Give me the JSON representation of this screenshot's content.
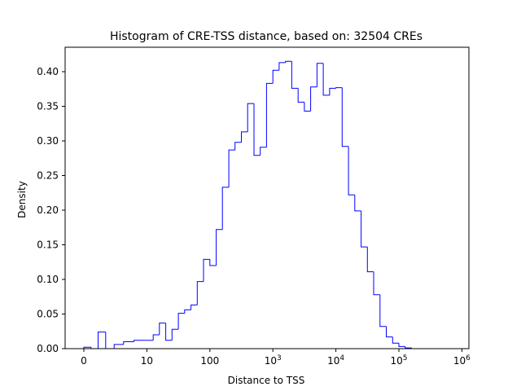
{
  "chart_data": {
    "type": "histogram",
    "title": "Histogram of CRE-TSS distance, based on: 32504 CREs",
    "xlabel": "Distance to TSS",
    "ylabel": "Density",
    "xscale": "symlog",
    "ylim": [
      0,
      0.435
    ],
    "grid": false,
    "legend": "none",
    "line_color": "#0000ff",
    "x_ticks": [
      {
        "value": 0,
        "label": "0",
        "exp": ""
      },
      {
        "value": 10,
        "label": "10",
        "exp": ""
      },
      {
        "value": 100,
        "label": "100",
        "exp": ""
      },
      {
        "value": 1000,
        "label": "10",
        "exp": "3"
      },
      {
        "value": 10000,
        "label": "10",
        "exp": "4"
      },
      {
        "value": 100000,
        "label": "10",
        "exp": "5"
      },
      {
        "value": 1000000,
        "label": "10",
        "exp": "6"
      }
    ],
    "y_ticks": [
      "0.00",
      "0.05",
      "0.10",
      "0.15",
      "0.20",
      "0.25",
      "0.30",
      "0.35",
      "0.40"
    ],
    "bin_edges": [
      0,
      1.15,
      2.26,
      3.46,
      4.81,
      6.31,
      7.94,
      10.0,
      12.6,
      15.8,
      19.95,
      25.1,
      31.6,
      39.8,
      50.1,
      63.1,
      79.4,
      100,
      126,
      158,
      200,
      251,
      316,
      398,
      501,
      631,
      794,
      1000,
      1259,
      1585,
      1995,
      2512,
      3162,
      3981,
      5012,
      6310,
      7943,
      10000,
      12589,
      15849,
      19953,
      25119,
      31623,
      39811,
      50119,
      63096,
      79433,
      100000,
      125893,
      158489,
      199526,
      251189,
      316228,
      398107,
      501187,
      631000
    ],
    "density": [
      0.002,
      0.0,
      0.024,
      0.0,
      0.006,
      0.01,
      0.012,
      0.012,
      0.02,
      0.037,
      0.012,
      0.028,
      0.051,
      0.056,
      0.063,
      0.097,
      0.129,
      0.12,
      0.172,
      0.233,
      0.287,
      0.298,
      0.313,
      0.354,
      0.279,
      0.291,
      0.383,
      0.402,
      0.413,
      0.415,
      0.376,
      0.356,
      0.343,
      0.378,
      0.412,
      0.366,
      0.376,
      0.377,
      0.292,
      0.222,
      0.199,
      0.147,
      0.111,
      0.078,
      0.032,
      0.017,
      0.008,
      0.003,
      0.001,
      0.0,
      0.0,
      0.0,
      0.0,
      0.0,
      0.0
    ]
  }
}
